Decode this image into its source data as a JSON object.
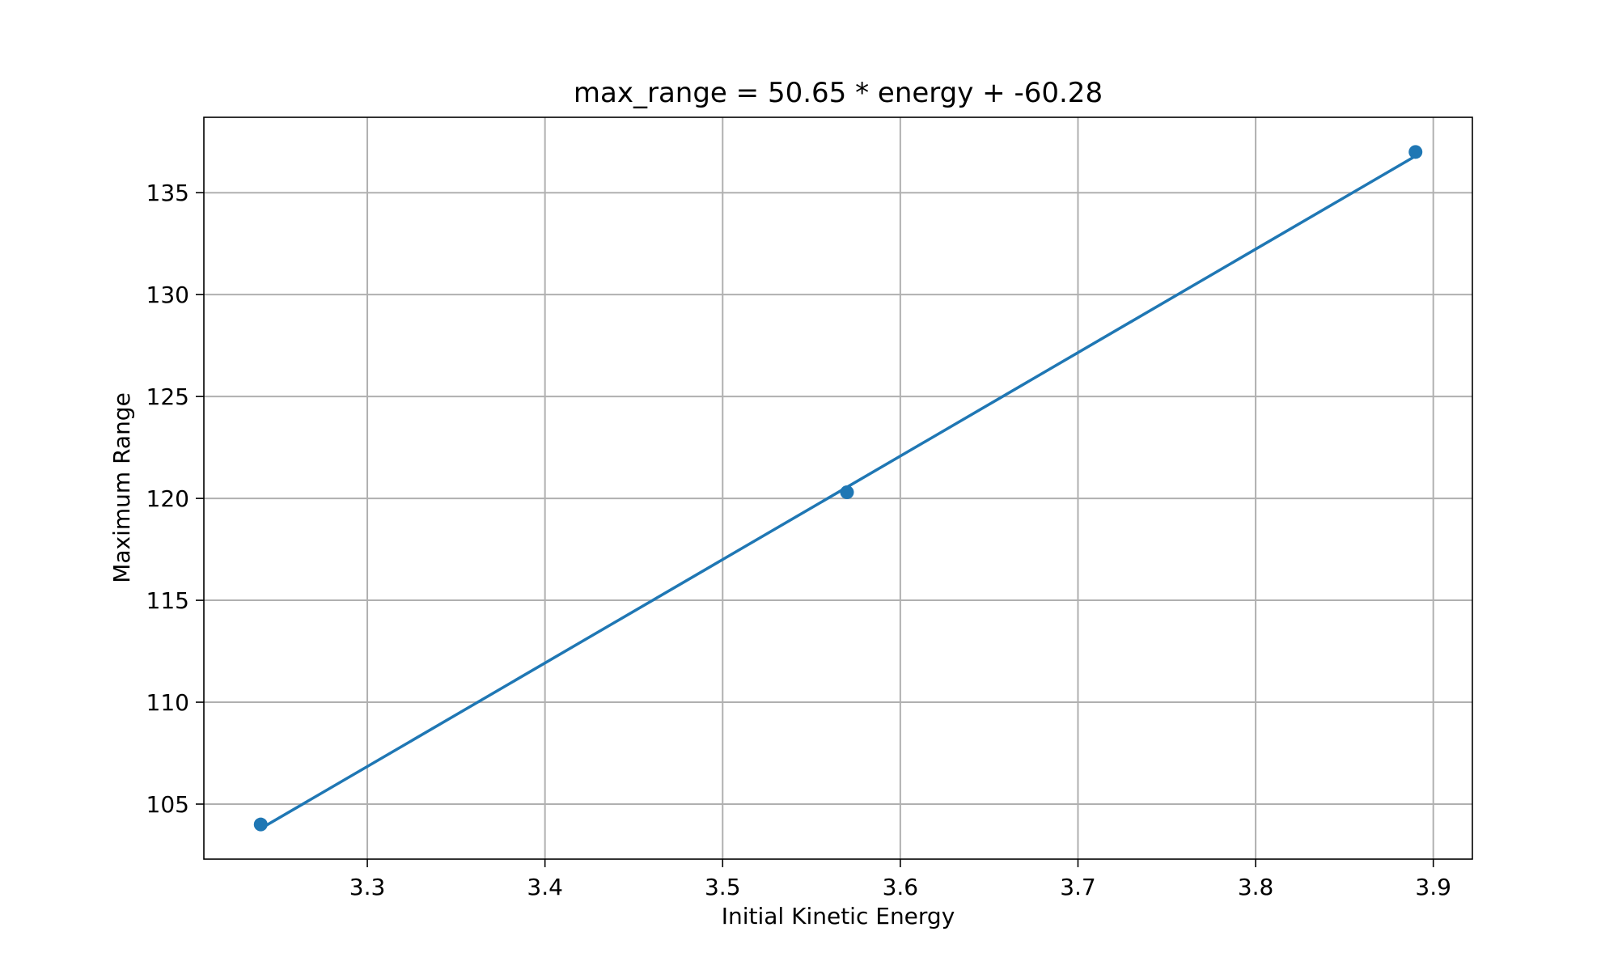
{
  "chart_data": {
    "type": "line",
    "title": "max_range = 50.65 * energy + -60.28",
    "xlabel": "Initial Kinetic Energy",
    "ylabel": "Maximum Range",
    "xlim": [
      3.208,
      3.922
    ],
    "ylim": [
      102.3,
      138.7
    ],
    "x_ticks": [
      3.3,
      3.4,
      3.5,
      3.6,
      3.7,
      3.8,
      3.9
    ],
    "x_tick_labels": [
      "3.3",
      "3.4",
      "3.5",
      "3.6",
      "3.7",
      "3.8",
      "3.9"
    ],
    "y_ticks": [
      105,
      110,
      115,
      120,
      125,
      130,
      135
    ],
    "y_tick_labels": [
      "105",
      "110",
      "115",
      "120",
      "125",
      "130",
      "135"
    ],
    "grid": true,
    "series": [
      {
        "type": "scatter",
        "x": [
          3.24,
          3.57,
          3.89
        ],
        "y": [
          104.0,
          120.3,
          137.0
        ]
      },
      {
        "type": "line",
        "x": [
          3.24,
          3.89
        ],
        "y": [
          103.8,
          136.8
        ]
      }
    ],
    "colors": {
      "series": "#1f77b4",
      "grid": "#b0b0b0",
      "axes": "#000000"
    }
  }
}
